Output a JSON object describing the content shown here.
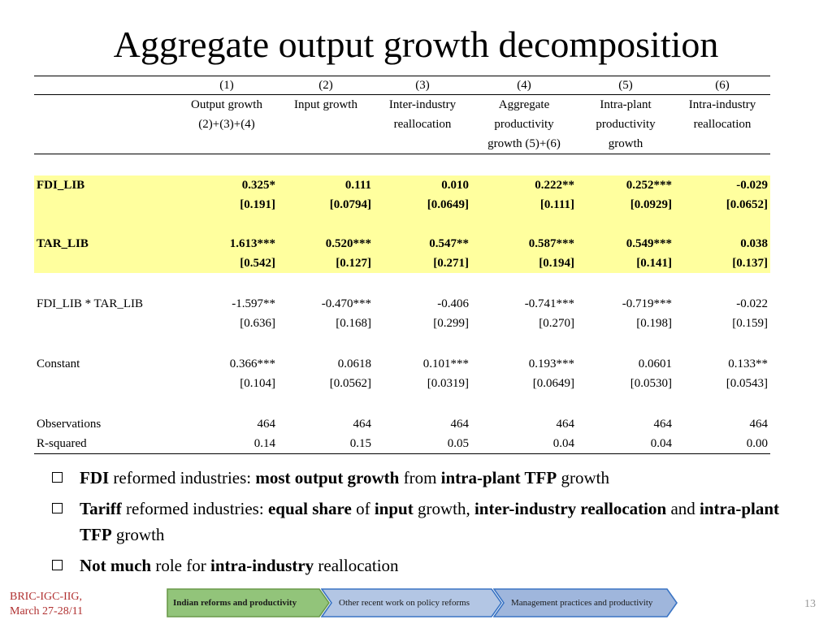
{
  "title": "Aggregate output growth decomposition",
  "table": {
    "column_numbers": [
      "(1)",
      "(2)",
      "(3)",
      "(4)",
      "(5)",
      "(6)"
    ],
    "column_names": [
      [
        "Output growth",
        "(2)+(3)+(4)"
      ],
      [
        "Input growth"
      ],
      [
        "Inter-industry",
        "reallocation"
      ],
      [
        "Aggregate",
        "productivity",
        "growth (5)+(6)"
      ],
      [
        "Intra-plant",
        "productivity",
        "growth"
      ],
      [
        "Intra-industry",
        "reallocation"
      ]
    ],
    "rows": [
      {
        "label": "FDI_LIB",
        "coef": [
          "0.325*",
          "0.111",
          "0.010",
          "0.222**",
          "0.252***",
          "-0.029"
        ],
        "se": [
          "[0.191]",
          "[0.0794]",
          "[0.0649]",
          "[0.111]",
          "[0.0929]",
          "[0.0652]"
        ],
        "highlight": true
      },
      {
        "label": "TAR_LIB",
        "coef": [
          "1.613***",
          "0.520***",
          "0.547**",
          "0.587***",
          "0.549***",
          "0.038"
        ],
        "se": [
          "[0.542]",
          "[0.127]",
          "[0.271]",
          "[0.194]",
          "[0.141]",
          "[0.137]"
        ],
        "highlight": true
      },
      {
        "label": "FDI_LIB * TAR_LIB",
        "coef": [
          "-1.597**",
          "-0.470***",
          "-0.406",
          "-0.741***",
          "-0.719***",
          "-0.022"
        ],
        "se": [
          "[0.636]",
          "[0.168]",
          "[0.299]",
          "[0.270]",
          "[0.198]",
          "[0.159]"
        ],
        "highlight": false
      },
      {
        "label": "Constant",
        "coef": [
          "0.366***",
          "0.0618",
          "0.101***",
          "0.193***",
          "0.0601",
          "0.133**"
        ],
        "se": [
          "[0.104]",
          "[0.0562]",
          "[0.0319]",
          "[0.0649]",
          "[0.0530]",
          "[0.0543]"
        ],
        "highlight": false
      }
    ],
    "observations": {
      "label": "Observations",
      "values": [
        "464",
        "464",
        "464",
        "464",
        "464",
        "464"
      ]
    },
    "rsquared": {
      "label": "R-squared",
      "values": [
        "0.14",
        "0.15",
        "0.05",
        "0.04",
        "0.04",
        "0.00"
      ]
    }
  },
  "bullets": [
    [
      {
        "t": "FDI",
        "b": true
      },
      {
        "t": " reformed industries: ",
        "b": false
      },
      {
        "t": "most output growth",
        "b": true
      },
      {
        "t": " from ",
        "b": false
      },
      {
        "t": "intra-plant TFP",
        "b": true
      },
      {
        "t": " growth",
        "b": false
      }
    ],
    [
      {
        "t": "Tariff",
        "b": true
      },
      {
        "t": "  reformed industries: ",
        "b": false
      },
      {
        "t": "equal share",
        "b": true
      },
      {
        "t": " of  ",
        "b": false
      },
      {
        "t": "input",
        "b": true
      },
      {
        "t": " growth, ",
        "b": false
      },
      {
        "t": "inter-industry reallocation",
        "b": true
      },
      {
        "t": " and ",
        "b": false
      },
      {
        "t": "intra-plant TFP",
        "b": true
      },
      {
        "t": " growth",
        "b": false
      }
    ],
    [
      {
        "t": "Not much",
        "b": true
      },
      {
        "t": " role for ",
        "b": false
      },
      {
        "t": "intra-industry",
        "b": true
      },
      {
        "t": " reallocation",
        "b": false
      }
    ]
  ],
  "footer": {
    "left_line1": "BRIC-IGC-IIG,",
    "left_line2": "March 27-28/11",
    "page_number": "13"
  },
  "nav": [
    {
      "label": "Indian reforms and productivity",
      "active": true,
      "color": "#92c47a",
      "bold": true
    },
    {
      "label": "Other recent work on policy reforms",
      "active": false,
      "color": "#b3c6e4",
      "bold": false
    },
    {
      "label": "Management practices and productivity",
      "active": false,
      "color": "#9fb6dc",
      "bold": false
    }
  ]
}
